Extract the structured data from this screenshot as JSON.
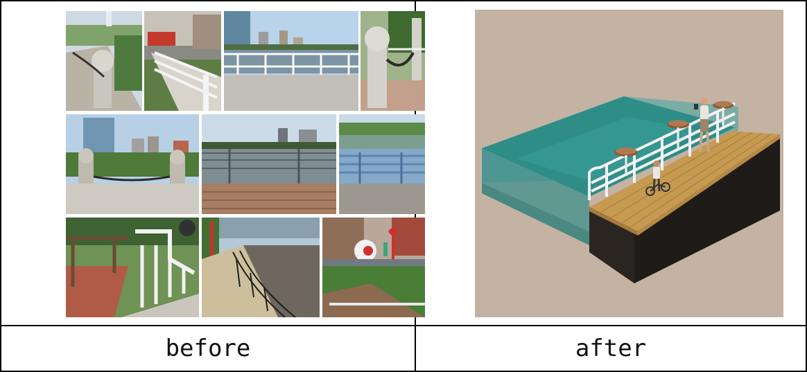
{
  "table": {
    "left_caption": "before",
    "right_caption": "after"
  },
  "before_collage": {
    "photos": [
      {
        "name": "stone-bollard-chain-walkway"
      },
      {
        "name": "white-railing-street-view"
      },
      {
        "name": "river-panorama-white-fence"
      },
      {
        "name": "bollard-closeup-chain"
      },
      {
        "name": "bollards-city-skyline"
      },
      {
        "name": "metal-railing-riverside-deck"
      },
      {
        "name": "blue-railing-pond"
      },
      {
        "name": "white-railing-steps-wood-deck"
      },
      {
        "name": "curved-black-railing-canal"
      },
      {
        "name": "red-sculpture-plaza"
      }
    ]
  },
  "after_render": {
    "description_icon": "3d-riverside-deck-model",
    "colors": {
      "background": "#c4b3a3",
      "water": "#2f8d88",
      "deck": "#c79a52",
      "base": "#1f1b18",
      "railing": "#f2f2f2"
    }
  }
}
